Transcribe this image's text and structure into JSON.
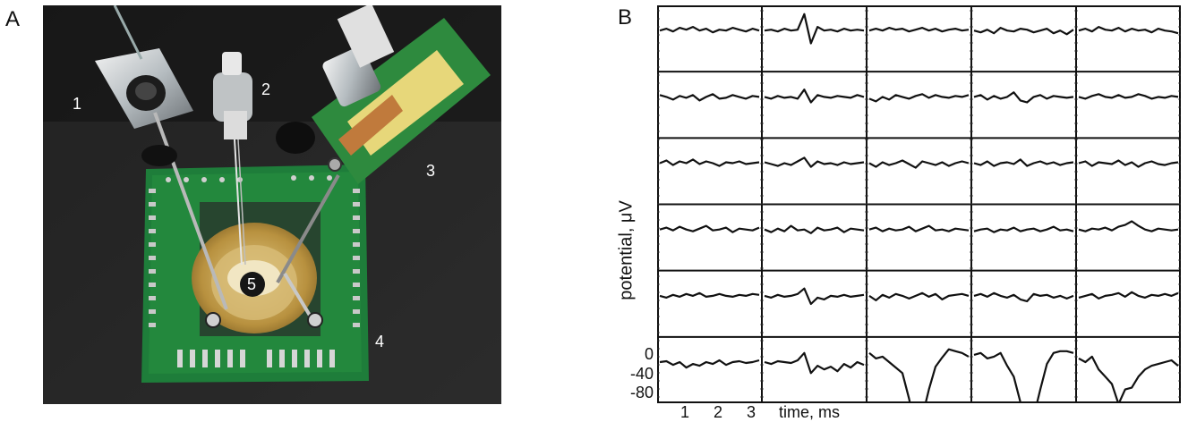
{
  "figure": {
    "panel_a": {
      "letter": "A",
      "labels": [
        "1",
        "2",
        "3",
        "4",
        "5"
      ]
    },
    "panel_b": {
      "letter": "B",
      "ylabel": "potential, μV",
      "ytick_labels": [
        "0",
        "-40",
        "-80"
      ],
      "xtick_labels": [
        "1",
        "2",
        "3"
      ],
      "xlabel": "time, ms"
    }
  },
  "chart_data": {
    "type": "line",
    "layout": "grid of 6 rows x 5 columns of voltage traces",
    "title": "",
    "xlabel": "time, ms",
    "ylabel": "potential, μV",
    "xticks": [
      1,
      2,
      3
    ],
    "yticks": [
      0,
      -40,
      -80
    ],
    "ylim": [
      -85,
      15
    ],
    "grid": "panel borders only",
    "traces": [
      {
        "row": 1,
        "col": 1,
        "values": [
          0,
          2,
          -1,
          3,
          1,
          4,
          0,
          2,
          -2,
          1,
          0,
          3,
          1,
          -1,
          2,
          0
        ]
      },
      {
        "row": 1,
        "col": 2,
        "values": [
          0,
          1,
          -1,
          2,
          0,
          1,
          18,
          -14,
          4,
          0,
          1,
          -1,
          2,
          0,
          1,
          0
        ]
      },
      {
        "row": 1,
        "col": 3,
        "values": [
          0,
          2,
          0,
          3,
          1,
          2,
          -1,
          1,
          3,
          0,
          2,
          -1,
          1,
          2,
          0,
          1
        ]
      },
      {
        "row": 1,
        "col": 4,
        "values": [
          0,
          -2,
          1,
          -3,
          3,
          0,
          -1,
          2,
          1,
          -2,
          0,
          2,
          -3,
          0,
          -4,
          1
        ]
      },
      {
        "row": 1,
        "col": 5,
        "values": [
          0,
          2,
          -1,
          4,
          1,
          0,
          3,
          -1,
          2,
          0,
          1,
          -2,
          2,
          0,
          -1,
          -3
        ]
      },
      {
        "row": 2,
        "col": 1,
        "values": [
          2,
          0,
          -3,
          1,
          -1,
          2,
          -4,
          0,
          3,
          -2,
          -1,
          2,
          0,
          -2,
          1,
          0
        ]
      },
      {
        "row": 2,
        "col": 2,
        "values": [
          0,
          -2,
          1,
          -1,
          0,
          -2,
          8,
          -6,
          2,
          0,
          -1,
          1,
          0,
          -1,
          2,
          0
        ]
      },
      {
        "row": 2,
        "col": 3,
        "values": [
          -2,
          -5,
          0,
          -3,
          2,
          0,
          -2,
          1,
          3,
          -1,
          2,
          0,
          -1,
          1,
          0,
          2
        ]
      },
      {
        "row": 2,
        "col": 4,
        "values": [
          0,
          2,
          -3,
          1,
          -2,
          0,
          5,
          -4,
          -6,
          0,
          2,
          -2,
          1,
          0,
          -1,
          0
        ]
      },
      {
        "row": 2,
        "col": 5,
        "values": [
          0,
          -2,
          1,
          3,
          0,
          -1,
          2,
          -1,
          0,
          3,
          1,
          -2,
          0,
          -1,
          1,
          0
        ]
      },
      {
        "row": 3,
        "col": 1,
        "values": [
          0,
          3,
          -2,
          2,
          0,
          4,
          -1,
          2,
          0,
          -3,
          1,
          0,
          2,
          -1,
          0,
          1
        ]
      },
      {
        "row": 3,
        "col": 2,
        "values": [
          1,
          -1,
          -3,
          0,
          -2,
          2,
          6,
          -4,
          2,
          -1,
          0,
          -2,
          1,
          -1,
          0,
          1
        ]
      },
      {
        "row": 3,
        "col": 3,
        "values": [
          0,
          -4,
          1,
          -2,
          0,
          3,
          -1,
          -5,
          2,
          0,
          -2,
          1,
          -3,
          0,
          2,
          0
        ]
      },
      {
        "row": 3,
        "col": 4,
        "values": [
          0,
          -2,
          2,
          -3,
          0,
          1,
          -1,
          4,
          -3,
          0,
          2,
          -1,
          1,
          -2,
          0,
          1
        ]
      },
      {
        "row": 3,
        "col": 5,
        "values": [
          0,
          2,
          -3,
          1,
          0,
          -1,
          3,
          -2,
          1,
          -4,
          0,
          2,
          -1,
          -2,
          0,
          1
        ]
      },
      {
        "row": 4,
        "col": 1,
        "values": [
          0,
          2,
          -1,
          3,
          0,
          -2,
          1,
          4,
          -1,
          0,
          2,
          -3,
          1,
          0,
          -1,
          2
        ]
      },
      {
        "row": 4,
        "col": 2,
        "values": [
          0,
          -3,
          1,
          -2,
          4,
          -1,
          0,
          -4,
          2,
          -1,
          0,
          2,
          -3,
          1,
          0,
          -1
        ]
      },
      {
        "row": 4,
        "col": 3,
        "values": [
          0,
          2,
          -2,
          1,
          -1,
          0,
          3,
          -2,
          1,
          4,
          -1,
          0,
          -2,
          1,
          0,
          -1
        ]
      },
      {
        "row": 4,
        "col": 4,
        "values": [
          -2,
          0,
          1,
          -3,
          0,
          -1,
          2,
          -2,
          0,
          1,
          -2,
          0,
          3,
          -1,
          0,
          -2
        ]
      },
      {
        "row": 4,
        "col": 5,
        "values": [
          0,
          -2,
          1,
          0,
          2,
          -1,
          3,
          5,
          9,
          4,
          0,
          -2,
          1,
          0,
          -1,
          0
        ]
      },
      {
        "row": 5,
        "col": 1,
        "values": [
          0,
          -2,
          1,
          -1,
          2,
          0,
          3,
          -1,
          0,
          2,
          0,
          -1,
          1,
          0,
          2,
          1
        ]
      },
      {
        "row": 5,
        "col": 2,
        "values": [
          0,
          -2,
          1,
          -1,
          0,
          2,
          8,
          -9,
          -2,
          -4,
          0,
          -1,
          1,
          -1,
          0,
          1
        ]
      },
      {
        "row": 5,
        "col": 3,
        "values": [
          0,
          -5,
          1,
          -2,
          2,
          0,
          -3,
          0,
          3,
          -1,
          2,
          -4,
          0,
          1,
          2,
          0
        ]
      },
      {
        "row": 5,
        "col": 4,
        "values": [
          0,
          2,
          -1,
          3,
          0,
          -2,
          1,
          -4,
          -6,
          2,
          0,
          1,
          -2,
          0,
          -3,
          0
        ]
      },
      {
        "row": 5,
        "col": 5,
        "values": [
          -2,
          0,
          2,
          -3,
          0,
          1,
          3,
          -1,
          4,
          0,
          -2,
          1,
          0,
          2,
          0,
          3
        ]
      },
      {
        "row": 6,
        "col": 1,
        "values": [
          0,
          1,
          -3,
          0,
          -6,
          -2,
          -4,
          0,
          -2,
          2,
          -3,
          0,
          1,
          -1,
          0,
          2
        ]
      },
      {
        "row": 6,
        "col": 2,
        "values": [
          0,
          -2,
          1,
          0,
          -1,
          2,
          10,
          -12,
          -4,
          -8,
          -5,
          -10,
          -2,
          -6,
          0,
          -3
        ]
      },
      {
        "row": 6,
        "col": 3,
        "values": [
          10,
          4,
          6,
          0,
          -6,
          -12,
          -40,
          -74,
          -60,
          -30,
          -5,
          5,
          14,
          12,
          10,
          6
        ]
      },
      {
        "row": 6,
        "col": 4,
        "values": [
          8,
          10,
          4,
          6,
          10,
          -4,
          -16,
          -44,
          -82,
          -60,
          -30,
          -2,
          10,
          12,
          12,
          10
        ]
      },
      {
        "row": 6,
        "col": 5,
        "values": [
          4,
          0,
          6,
          -8,
          -16,
          -24,
          -46,
          -30,
          -28,
          -16,
          -8,
          -4,
          -2,
          0,
          2,
          -4
        ]
      }
    ]
  }
}
